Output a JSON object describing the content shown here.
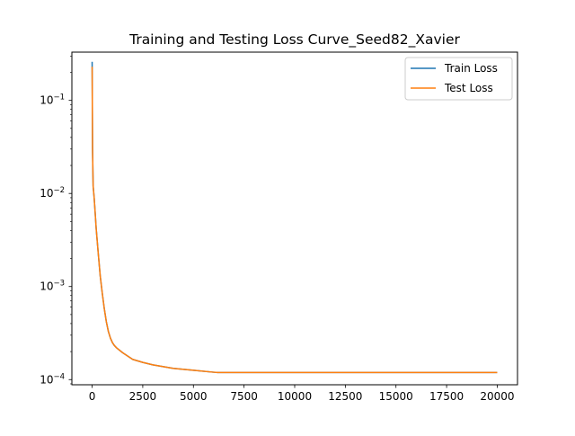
{
  "chart_data": {
    "type": "line",
    "title": "Training and Testing Loss Curve_Seed82_Xavier",
    "xlabel": "",
    "ylabel": "",
    "xscale": "linear",
    "yscale": "log",
    "xlim": [
      -1000,
      21000
    ],
    "ylim": [
      8.8e-05,
      0.33
    ],
    "grid": false,
    "legend_position": "upper right",
    "x_ticks": [
      0,
      2500,
      5000,
      7500,
      10000,
      12500,
      15000,
      17500,
      20000
    ],
    "x_tick_labels": [
      "0",
      "2500",
      "5000",
      "7500",
      "10000",
      "12500",
      "15000",
      "17500",
      "20000"
    ],
    "y_ticks": [
      0.0001,
      0.001,
      0.01,
      0.1
    ],
    "y_tick_labels": [
      {
        "base": "10",
        "exp": "−4"
      },
      {
        "base": "10",
        "exp": "−3"
      },
      {
        "base": "10",
        "exp": "−2"
      },
      {
        "base": "10",
        "exp": "−1"
      }
    ],
    "series": [
      {
        "name": "Train Loss",
        "color": "#1f77b4",
        "x": [
          0,
          20,
          50,
          100,
          150,
          200,
          300,
          400,
          500,
          600,
          700,
          800,
          900,
          1000,
          1100,
          1200,
          1500,
          2000,
          2500,
          3000,
          4000,
          5000,
          6000,
          6200,
          7000,
          8000,
          10000,
          12500,
          15000,
          17500,
          20000
        ],
        "values": [
          0.26,
          0.03,
          0.012,
          0.009,
          0.0062,
          0.0042,
          0.0023,
          0.0013,
          0.00085,
          0.00058,
          0.00042,
          0.00033,
          0.00028,
          0.00025,
          0.000232,
          0.00022,
          0.000195,
          0.000165,
          0.000153,
          0.000144,
          0.000132,
          0.000126,
          0.00012,
          0.000119,
          0.000119,
          0.000119,
          0.000119,
          0.000119,
          0.000119,
          0.000119,
          0.000119
        ]
      },
      {
        "name": "Test Loss",
        "color": "#ff7f0e",
        "x": [
          0,
          20,
          50,
          100,
          150,
          200,
          300,
          400,
          500,
          600,
          700,
          800,
          900,
          1000,
          1100,
          1200,
          1500,
          2000,
          2500,
          3000,
          4000,
          5000,
          6000,
          6200,
          7000,
          8000,
          10000,
          12500,
          15000,
          17500,
          20000
        ],
        "values": [
          0.23,
          0.03,
          0.012,
          0.009,
          0.0062,
          0.0042,
          0.0023,
          0.0013,
          0.00085,
          0.00058,
          0.00042,
          0.00033,
          0.00028,
          0.00025,
          0.000232,
          0.00022,
          0.000195,
          0.000165,
          0.000153,
          0.000144,
          0.000132,
          0.000126,
          0.00012,
          0.000119,
          0.000119,
          0.000119,
          0.000119,
          0.000119,
          0.000119,
          0.000119,
          0.000119
        ]
      }
    ]
  }
}
